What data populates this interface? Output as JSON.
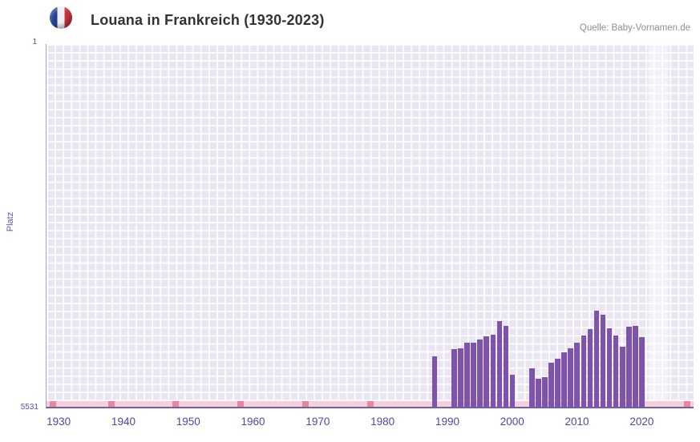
{
  "header": {
    "title": "Louana in Frankreich (1930-2023)",
    "source": "Quelle: Baby-Vornamen.de",
    "flag_icon": "france-flag-icon"
  },
  "chart_data": {
    "type": "bar",
    "title": "Louana in Frankreich (1930-2023)",
    "xlabel": "",
    "ylabel": "Platz",
    "x_range": [
      1928,
      2028
    ],
    "x_ticks": [
      1930,
      1940,
      1950,
      1960,
      1970,
      1980,
      1990,
      2000,
      2010,
      2020
    ],
    "y_axis": {
      "min": 1,
      "max": 5531,
      "inverted": true,
      "tick_top": "1",
      "tick_bottom": "5531"
    },
    "grid": true,
    "legend_position": "none",
    "highlight_band_years": [
      2021,
      2024
    ],
    "unranked_marker_years": [
      1929,
      1938,
      1948,
      1958,
      1968,
      1978,
      2027
    ],
    "series": [
      {
        "name": "Platz",
        "points": [
          [
            1988,
            4760
          ],
          [
            1991,
            4650
          ],
          [
            1992,
            4645
          ],
          [
            1993,
            4555
          ],
          [
            1994,
            4550
          ],
          [
            1995,
            4500
          ],
          [
            1996,
            4460
          ],
          [
            1997,
            4430
          ],
          [
            1998,
            4230
          ],
          [
            1999,
            4300
          ],
          [
            2000,
            5040
          ],
          [
            2003,
            4950
          ],
          [
            2004,
            5100
          ],
          [
            2005,
            5085
          ],
          [
            2006,
            4860
          ],
          [
            2007,
            4800
          ],
          [
            2008,
            4700
          ],
          [
            2009,
            4640
          ],
          [
            2010,
            4555
          ],
          [
            2011,
            4440
          ],
          [
            2012,
            4350
          ],
          [
            2013,
            4070
          ],
          [
            2014,
            4130
          ],
          [
            2015,
            4340
          ],
          [
            2016,
            4440
          ],
          [
            2017,
            4620
          ],
          [
            2018,
            4310
          ],
          [
            2019,
            4300
          ],
          [
            2020,
            4470
          ]
        ]
      }
    ],
    "colors": {
      "bar": "#7d53ab",
      "plot_bg": "#e9e5f1",
      "grid_line": "#ffffff",
      "axis_line": "#6c5fae",
      "tick_label": "#4c49a5",
      "unranked_strip": "#f5cfd9",
      "unranked_marker": "#ee8498",
      "highlight_band": "rgba(255,255,255,0.5)",
      "title_color": "#333333",
      "source_color": "#8f8f8f"
    }
  }
}
